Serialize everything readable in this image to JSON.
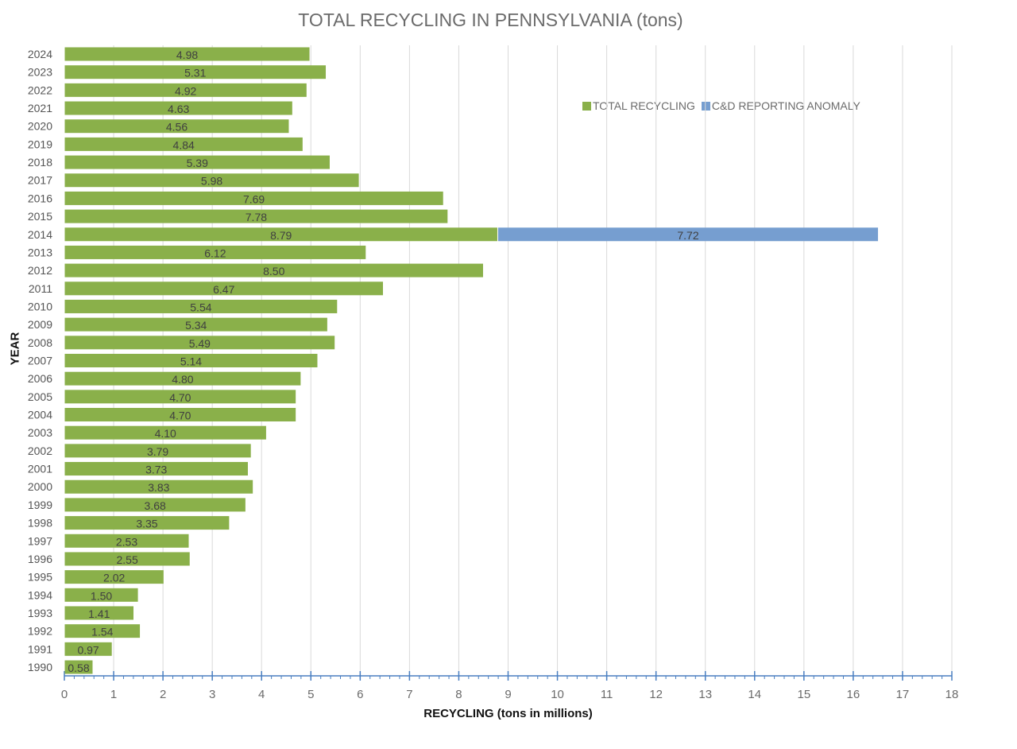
{
  "chart_data": {
    "type": "bar",
    "orientation": "horizontal",
    "stacked": true,
    "title": "TOTAL RECYCLING IN PENNSYLVANIA (tons)",
    "xlabel": "RECYCLING (tons in millions)",
    "ylabel": "YEAR",
    "xlim": [
      0,
      18
    ],
    "xticks": [
      0,
      1,
      2,
      3,
      4,
      5,
      6,
      7,
      8,
      9,
      10,
      11,
      12,
      13,
      14,
      15,
      16,
      17,
      18
    ],
    "grid": true,
    "legend_position": "top-right",
    "categories": [
      "1990",
      "1991",
      "1992",
      "1993",
      "1994",
      "1995",
      "1996",
      "1997",
      "1998",
      "1999",
      "2000",
      "2001",
      "2002",
      "2003",
      "2004",
      "2005",
      "2006",
      "2007",
      "2008",
      "2009",
      "2010",
      "2011",
      "2012",
      "2013",
      "2014",
      "2015",
      "2016",
      "2017",
      "2018",
      "2019",
      "2020",
      "2021",
      "2022",
      "2023",
      "2024"
    ],
    "series": [
      {
        "name": "TOTAL RECYCLING",
        "color": "#8ab04a",
        "values": [
          0.58,
          0.97,
          1.54,
          1.41,
          1.5,
          2.02,
          2.55,
          2.53,
          3.35,
          3.68,
          3.83,
          3.73,
          3.79,
          4.1,
          4.7,
          4.7,
          4.8,
          5.14,
          5.49,
          5.34,
          5.54,
          6.47,
          8.5,
          6.12,
          8.79,
          7.78,
          7.69,
          5.98,
          5.39,
          4.84,
          4.56,
          4.63,
          4.92,
          5.31,
          4.98
        ],
        "labels": [
          "0.58",
          "0.97",
          "1.54",
          "1.41",
          "1.50",
          "2.02",
          "2.55",
          "2.53",
          "3.35",
          "3.68",
          "3.83",
          "3.73",
          "3.79",
          "4.10",
          "4.70",
          "4.70",
          "4.80",
          "5.14",
          "5.49",
          "5.34",
          "5.54",
          "6.47",
          "8.50",
          "6.12",
          "8.79",
          "7.78",
          "7.69",
          "5.98",
          "5.39",
          "4.84",
          "4.56",
          "4.63",
          "4.92",
          "5.31",
          "4.98"
        ]
      },
      {
        "name": "C&D REPORTING ANOMALY",
        "color": "#769ed0",
        "values": [
          null,
          null,
          null,
          null,
          null,
          null,
          null,
          null,
          null,
          null,
          null,
          null,
          null,
          null,
          null,
          null,
          null,
          null,
          null,
          null,
          null,
          null,
          null,
          null,
          7.72,
          null,
          null,
          null,
          null,
          null,
          null,
          null,
          null,
          null,
          null
        ],
        "labels": [
          "",
          "",
          "",
          "",
          "",
          "",
          "",
          "",
          "",
          "",
          "",
          "",
          "",
          "",
          "",
          "",
          "",
          "",
          "",
          "",
          "",
          "",
          "",
          "",
          "7.72",
          "",
          "",
          "",
          "",
          "",
          "",
          "",
          "",
          "",
          ""
        ]
      }
    ],
    "axis_color": "#4a7fc1",
    "grid_color": "#d9d9d9"
  }
}
